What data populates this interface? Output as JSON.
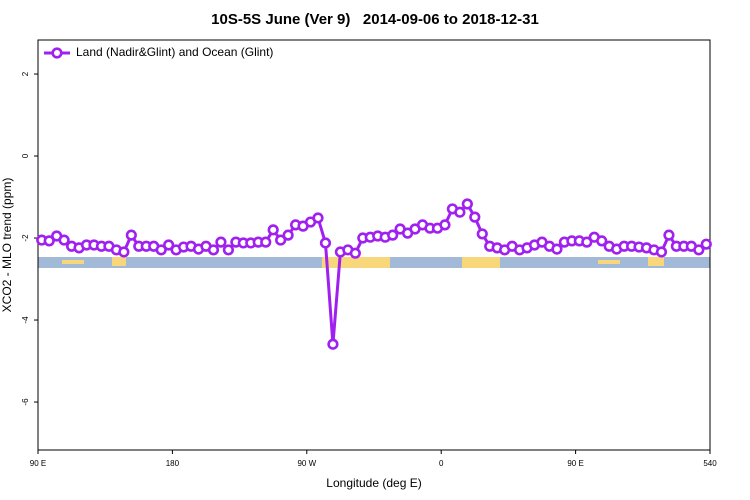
{
  "chart_data": {
    "type": "line",
    "title": "10S-5S June (Ver 9)   2014-09-06 to 2018-12-31",
    "x_label": "Longitude (deg E)",
    "y_label": "XCO2 - MLO trend (ppm)",
    "legend": "top-left",
    "xlim": [
      90,
      540
    ],
    "xticks": [
      {
        "value": 90,
        "label": "90 E"
      },
      180,
      {
        "value": 270,
        "label": "90 W"
      },
      {
        "value": 360,
        "label": "0"
      },
      {
        "value": 450,
        "label": "90 E"
      },
      540
    ],
    "ylim": [
      -7.17,
      2.83
    ],
    "yticks": [
      -6,
      -4,
      -2,
      0,
      2
    ],
    "x": [
      92.5,
      97.5,
      102.5,
      107.5,
      112.5,
      117.5,
      122.5,
      127.5,
      132.5,
      137.5,
      142.5,
      147.5,
      152.5,
      157.5,
      162.5,
      167.5,
      172.5,
      177.5,
      182.5,
      187.5,
      192.5,
      197.5,
      202.5,
      207.5,
      212.5,
      217.5,
      222.5,
      227.5,
      232.5,
      237.5,
      242.5,
      247.5,
      252.5,
      257.5,
      262.5,
      267.5,
      272.5,
      277.5,
      282.5,
      287.5,
      292.5,
      297.5,
      302.5,
      307.5,
      312.5,
      317.5,
      322.5,
      327.5,
      332.5,
      337.5,
      342.5,
      347.5,
      352.5,
      357.5,
      362.5,
      367.5,
      372.5,
      377.5,
      382.5,
      387.5,
      392.5,
      397.5,
      402.5,
      407.5,
      412.5,
      417.5,
      422.5,
      427.5,
      432.5,
      437.5,
      442.5,
      447.5,
      452.5,
      457.5,
      462.5,
      467.5,
      472.5,
      477.5,
      482.5,
      487.5,
      492.5,
      497.5,
      502.5,
      507.5,
      512.5,
      517.5,
      522.5,
      527.5,
      532.5,
      537.5
    ],
    "series": [
      {
        "name": "Land (Nadir&Glint) and Ocean (Glint)",
        "color": "#a020f0",
        "values": [
          -2.05,
          -2.07,
          -1.95,
          -2.05,
          -2.2,
          -2.24,
          -2.17,
          -2.17,
          -2.2,
          -2.2,
          -2.29,
          -2.34,
          -1.93,
          -2.2,
          -2.2,
          -2.2,
          -2.29,
          -2.17,
          -2.29,
          -2.22,
          -2.2,
          -2.27,
          -2.2,
          -2.29,
          -2.1,
          -2.29,
          -2.1,
          -2.12,
          -2.12,
          -2.1,
          -2.1,
          -1.8,
          -2.05,
          -1.93,
          -1.68,
          -1.71,
          -1.61,
          -1.51,
          -2.12,
          -4.59,
          -2.34,
          -2.29,
          -2.37,
          -2.0,
          -1.98,
          -1.95,
          -1.98,
          -1.93,
          -1.78,
          -1.88,
          -1.78,
          -1.68,
          -1.76,
          -1.76,
          -1.68,
          -1.29,
          -1.37,
          -1.17,
          -1.49,
          -1.9,
          -2.2,
          -2.24,
          -2.29,
          -2.2,
          -2.29,
          -2.24,
          -2.17,
          -2.1,
          -2.2,
          -2.27,
          -2.1,
          -2.07,
          -2.07,
          -2.1,
          -1.98,
          -2.07,
          -2.2,
          -2.27,
          -2.2,
          -2.2,
          -2.22,
          -2.24,
          -2.29,
          -2.34,
          -1.93,
          -2.2,
          -2.2,
          -2.2,
          -2.29,
          -2.15
        ]
      }
    ]
  }
}
